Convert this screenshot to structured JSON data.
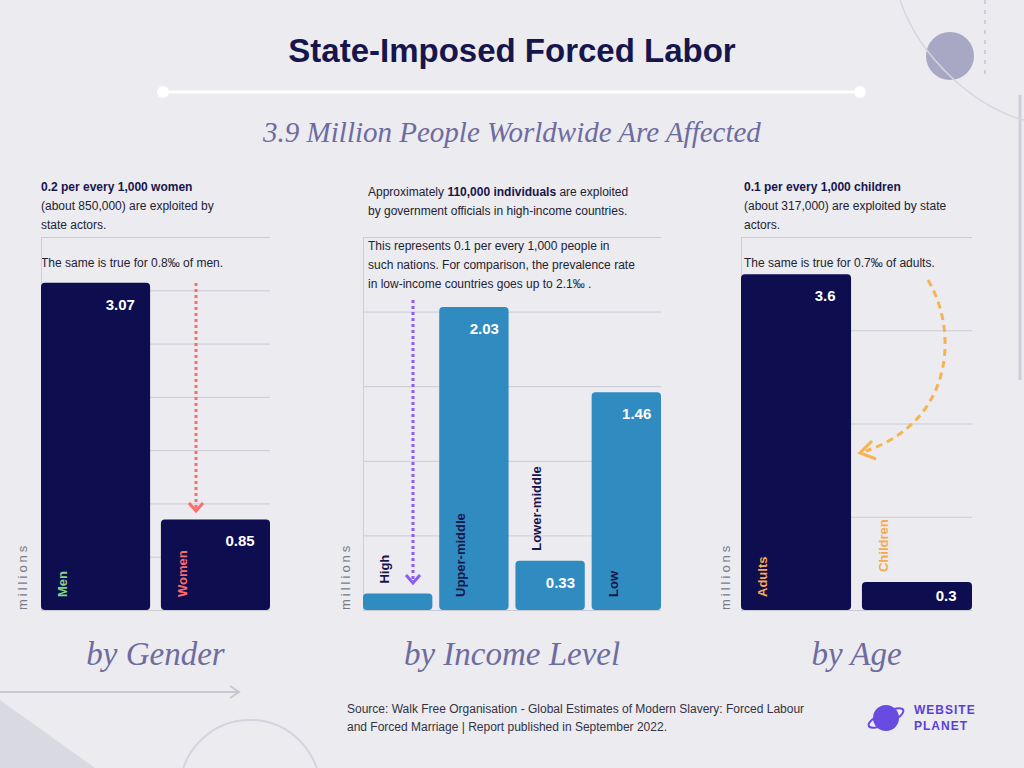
{
  "title": "State-Imposed Forced Labor",
  "subtitle": "3.9 Million People Worldwide Are Affected",
  "source": [
    "Source: Walk Free Organisation - Global Estimates of Modern Slavery: Forced Labour",
    "and Forced Marriage | Report published in September 2022."
  ],
  "logo": [
    "WEBSITE",
    "PLANET"
  ],
  "chart_data": [
    {
      "type": "bar",
      "title": "by Gender",
      "ylabel": "millions",
      "categories": [
        "Men",
        "Women"
      ],
      "values": [
        3.07,
        0.85
      ],
      "color": "#0e0d4f",
      "ylim": [
        0,
        3.5
      ],
      "yticks": [
        0,
        0.5,
        1,
        1.5,
        2,
        2.5,
        3,
        3.5
      ],
      "grid": true,
      "tick_labels": "x",
      "data_labels": true,
      "annotations": [
        {
          "lines": [
            "0.2 per every 1,000 women",
            "(about 850,000) are exploited by",
            "state actors."
          ],
          "emphasis": "0.2 per every 1,000 women"
        },
        {
          "lines": [
            "The same is true for 0.8‰ of men."
          ]
        }
      ]
    },
    {
      "type": "bar",
      "title": "by Income Level",
      "ylabel": "millions",
      "categories": [
        "High",
        "Upper-middle",
        "Lower-middle",
        "Low"
      ],
      "values": [
        0.11,
        2.03,
        0.33,
        1.46
      ],
      "value_labels": [
        null,
        "2.03",
        "0.33",
        "1.46"
      ],
      "color": "#2f8bc0",
      "ylim": [
        0,
        2.5
      ],
      "yticks": [
        0,
        0.5,
        1,
        1.5,
        2,
        2.5
      ],
      "grid": true,
      "tick_labels": "x",
      "data_labels": true,
      "annotations": [
        {
          "lines": [
            "Approximately 110,000 individuals are exploited",
            "by government officials in high-income countries."
          ],
          "emphasis": "110,000 individuals"
        },
        {
          "lines": [
            "This represents 0.1 per every 1,000 people in",
            "such nations. For comparison, the prevalence rate",
            "in low-income countries goes up to 2.1‰ ."
          ]
        }
      ]
    },
    {
      "type": "bar",
      "title": "by Age",
      "ylabel": "millions",
      "categories": [
        "Adults",
        "Children"
      ],
      "values": [
        3.6,
        0.3
      ],
      "color": "#0e0d4f",
      "ylim": [
        0,
        4
      ],
      "yticks": [
        0,
        1,
        2,
        3,
        4
      ],
      "grid": true,
      "tick_labels": "x",
      "data_labels": true,
      "annotations": [
        {
          "lines": [
            "0.1 per every 1,000 children",
            "(about 317,000) are exploited by state",
            "actors."
          ],
          "emphasis": "0.1 per every 1,000 children"
        },
        {
          "lines": [
            "The same is true for 0.7‰ of adults."
          ]
        }
      ]
    }
  ]
}
